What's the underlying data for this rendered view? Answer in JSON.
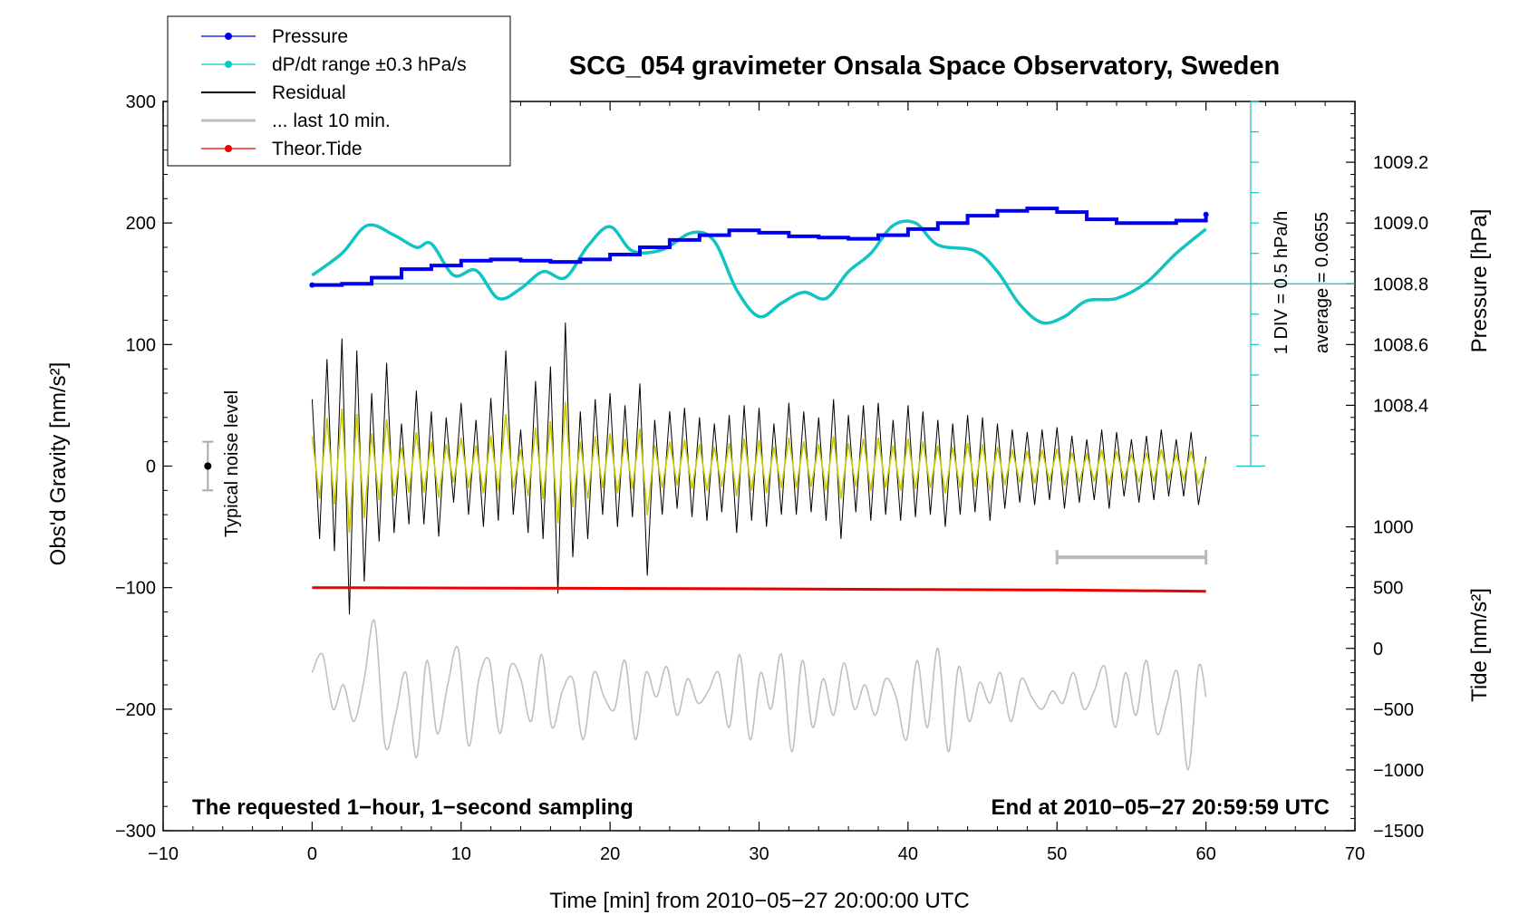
{
  "chart_data": {
    "type": "line",
    "title": "SCG_054 gravimeter Onsala Space Observatory, Sweden",
    "xlabel": "Time [min] from 2010−05−27 20:00:00 UTC",
    "ylabel_left": "Obs'd Gravity [nm/s²]",
    "ylabel_pressure": "Pressure [hPa]",
    "ylabel_tide": "Tide [nm/s²]",
    "xlim": [
      -10,
      70
    ],
    "ylim": [
      -300,
      300
    ],
    "x_ticks": [
      -10,
      0,
      10,
      20,
      30,
      40,
      50,
      60,
      70
    ],
    "x_tick_labels": [
      "−10",
      "0",
      "10",
      "20",
      "30",
      "40",
      "50",
      "60",
      "70"
    ],
    "y_ticks": [
      -300,
      -200,
      -100,
      0,
      100,
      200,
      300
    ],
    "y_tick_labels": [
      "−300",
      "−200",
      "−100",
      "0",
      "100",
      "200",
      "300"
    ],
    "pressure_axis": {
      "ticks": [
        1008.4,
        1008.6,
        1008.8,
        1009.0,
        1009.2
      ],
      "tick_labels": [
        "1008.4",
        "1008.6",
        "1008.8",
        "1009.0",
        "1009.2"
      ],
      "gravity_equiv": [
        50,
        100,
        150,
        200,
        250
      ]
    },
    "tide_axis": {
      "ticks": [
        -1500,
        -1000,
        -500,
        0,
        500,
        1000
      ],
      "tick_labels": [
        "−1500",
        "−1000",
        "−500",
        "0",
        "500",
        "1000"
      ],
      "gravity_equiv": [
        -300,
        -250,
        -200,
        -150,
        -100,
        -50
      ]
    },
    "legend": {
      "placement": "top-left",
      "entries": [
        {
          "label": "Pressure",
          "color": "#0000ee",
          "marker": true
        },
        {
          "label": "dP/dt range ±0.3 hPa/s",
          "color": "#00cccc",
          "marker": true
        },
        {
          "label": "Residual",
          "color": "#000000",
          "marker": false
        },
        {
          "label": "... last 10 min.",
          "color": "#bbbbbb",
          "marker": false
        },
        {
          "label": "Theor.Tide",
          "color": "#ee0000",
          "marker": true
        }
      ]
    },
    "series": [
      {
        "name": "Pressure",
        "color": "#0000ee",
        "x": [
          0,
          2,
          4,
          6,
          8,
          10,
          12,
          14,
          16,
          18,
          20,
          22,
          24,
          26,
          28,
          30,
          32,
          34,
          36,
          38,
          40,
          42,
          44,
          46,
          48,
          50,
          52,
          54,
          56,
          58,
          60
        ],
        "y": [
          149,
          150,
          155,
          162,
          165,
          169,
          170,
          169,
          168,
          170,
          174,
          180,
          186,
          190,
          194,
          192,
          189,
          188,
          187,
          190,
          195,
          200,
          206,
          210,
          212,
          209,
          203,
          200,
          200,
          202,
          207
        ]
      },
      {
        "name": "dP/dt",
        "color": "#11c4c4",
        "x": [
          0,
          2,
          3.7,
          5.5,
          7,
          8,
          9.5,
          11,
          12.5,
          14,
          15.5,
          17,
          18.5,
          20,
          21.5,
          23.5,
          25.5,
          27,
          28.5,
          30,
          31.5,
          33,
          34.5,
          36,
          37.5,
          39,
          40.5,
          42,
          44.5,
          46,
          47.5,
          49,
          50.5,
          52,
          54,
          56,
          58,
          60
        ],
        "y": [
          157,
          175,
          198,
          190,
          180,
          183,
          157,
          161,
          138,
          146,
          160,
          155,
          181,
          197,
          177,
          178,
          192,
          185,
          145,
          123,
          134,
          143,
          138,
          160,
          175,
          198,
          200,
          182,
          177,
          160,
          133,
          118,
          123,
          136,
          138,
          151,
          175,
          195
        ]
      },
      {
        "name": "Residual",
        "color": "#000000",
        "x": [
          0,
          0.5,
          1,
          1.5,
          2,
          2.5,
          3,
          3.5,
          4,
          4.5,
          5,
          5.5,
          6,
          6.5,
          7,
          7.5,
          8,
          8.5,
          9,
          9.5,
          10,
          10.5,
          11,
          11.5,
          12,
          12.5,
          13,
          13.5,
          14,
          14.5,
          15,
          15.5,
          16,
          16.5,
          17,
          17.5,
          18,
          18.5,
          19,
          19.5,
          20,
          20.5,
          21,
          21.5,
          22,
          22.5,
          23,
          23.5,
          24,
          24.5,
          25,
          25.5,
          26,
          26.5,
          27,
          27.5,
          28,
          28.5,
          29,
          29.5,
          30,
          30.5,
          31,
          31.5,
          32,
          32.5,
          33,
          33.5,
          34,
          34.5,
          35,
          35.5,
          36,
          36.5,
          37,
          37.5,
          38,
          38.5,
          39,
          39.5,
          40,
          40.5,
          41,
          41.5,
          42,
          42.5,
          43,
          43.5,
          44,
          44.5,
          45,
          45.5,
          46,
          46.5,
          47,
          47.5,
          48,
          48.5,
          49,
          49.5,
          50,
          50.5,
          51,
          51.5,
          52,
          52.5,
          53,
          53.5,
          54,
          54.5,
          55,
          55.5,
          56,
          56.5,
          57,
          57.5,
          58,
          58.5,
          59,
          59.5,
          60
        ],
        "y": [
          55,
          -60,
          88,
          -70,
          105,
          -122,
          95,
          -95,
          60,
          -62,
          85,
          -55,
          35,
          -48,
          62,
          -48,
          45,
          -58,
          40,
          -30,
          52,
          -40,
          38,
          -50,
          56,
          -45,
          95,
          -40,
          30,
          -55,
          70,
          -60,
          82,
          -105,
          118,
          -75,
          45,
          -60,
          55,
          -40,
          60,
          -50,
          50,
          -42,
          68,
          -90,
          38,
          -40,
          45,
          -35,
          48,
          -42,
          40,
          -45,
          35,
          -38,
          42,
          -55,
          50,
          -45,
          48,
          -50,
          35,
          -40,
          52,
          -40,
          45,
          -38,
          40,
          -45,
          55,
          -60,
          42,
          -38,
          50,
          -45,
          52,
          -40,
          38,
          -45,
          50,
          -42,
          45,
          -40,
          38,
          -50,
          35,
          -40,
          42,
          -38,
          40,
          -45,
          35,
          -35,
          30,
          -30,
          28,
          -32,
          30,
          -28,
          32,
          -35,
          25,
          -30,
          22,
          -28,
          30,
          -35,
          28,
          -25,
          22,
          -30,
          25,
          -28,
          30,
          -25,
          22,
          -25,
          28,
          -32,
          8
        ]
      },
      {
        "name": "... last 10 min.",
        "color": "#c0c0c0",
        "x": [
          0,
          0.7,
          1.4,
          2.1,
          2.8,
          3.5,
          4.2,
          4.9,
          5.6,
          6.3,
          7,
          7.7,
          8.4,
          9.1,
          9.8,
          10.5,
          11.2,
          11.9,
          12.6,
          13.3,
          14,
          14.7,
          15.4,
          16.1,
          16.8,
          17.5,
          18.2,
          18.9,
          19.6,
          20.3,
          21,
          21.7,
          22.4,
          23.1,
          23.8,
          24.5,
          25.2,
          25.9,
          26.6,
          27.3,
          28,
          28.7,
          29.4,
          30.1,
          30.8,
          31.5,
          32.2,
          32.9,
          33.6,
          34.3,
          35,
          35.7,
          36.4,
          37.1,
          37.8,
          38.5,
          39.2,
          39.9,
          40.6,
          41.3,
          42,
          42.7,
          43.4,
          44.1,
          44.8,
          45.5,
          46.2,
          46.9,
          47.6,
          48.3,
          49,
          49.7,
          50.4,
          51.1,
          51.8,
          52.5,
          53.2,
          53.9,
          54.6,
          55.3,
          56,
          56.7,
          57.4,
          58.1,
          58.8,
          59.5,
          60
        ],
        "y": [
          -170,
          -155,
          -200,
          -180,
          -210,
          -175,
          -128,
          -230,
          -205,
          -170,
          -240,
          -160,
          -220,
          -180,
          -150,
          -230,
          -175,
          -160,
          -220,
          -165,
          -175,
          -210,
          -155,
          -215,
          -185,
          -175,
          -225,
          -170,
          -190,
          -200,
          -160,
          -225,
          -170,
          -190,
          -165,
          -205,
          -175,
          -195,
          -185,
          -170,
          -215,
          -155,
          -225,
          -170,
          -200,
          -155,
          -235,
          -160,
          -215,
          -175,
          -205,
          -162,
          -200,
          -180,
          -205,
          -175,
          -190,
          -225,
          -160,
          -215,
          -150,
          -235,
          -165,
          -210,
          -178,
          -195,
          -170,
          -210,
          -175,
          -190,
          -200,
          -185,
          -195,
          -170,
          -200,
          -185,
          -165,
          -215,
          -170,
          -205,
          -160,
          -220,
          -195,
          -170,
          -250,
          -165,
          -190
        ]
      },
      {
        "name": "Theor.Tide",
        "color": "#ee0000",
        "x": [
          0,
          10,
          20,
          30,
          40,
          50,
          60
        ],
        "y": [
          -100,
          -100.3,
          -100.6,
          -101,
          -101.5,
          -102,
          -103
        ]
      }
    ],
    "pressure_guides": {
      "reference_level_gravity": 150,
      "scale_top_gravity": 300,
      "scale_bottom_gravity": 0,
      "scale_x_min": 63
    },
    "noise_bar": {
      "x_min": -7,
      "y_center": 0,
      "half_range": 20
    },
    "last_10_min_bar": {
      "x_start": 50,
      "x_end": 60,
      "y_gravity": -75
    },
    "annotations": {
      "typical_noise": "Typical noise level",
      "div_label": "1 DIV = 0.5 hPa/h",
      "average_label": "average = 0.0655",
      "bottom_left": "The requested 1−hour, 1−second sampling",
      "bottom_right": "End at 2010−05−27 20:59:59 UTC"
    }
  }
}
